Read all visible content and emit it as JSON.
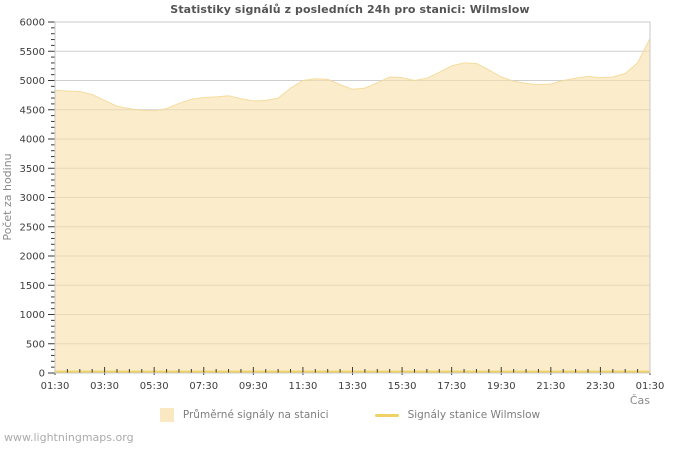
{
  "page": {
    "footer": "www.lightningmaps.org"
  },
  "colors": {
    "area_fill": "#F8E0A8",
    "area_fill_opacity": 0.6,
    "area_edge": "#F2D894",
    "station_line": "#F0D264",
    "legend_area_swatch": "#FAE8C3",
    "grid": "#CFCFCF",
    "plot_border": "#C9C9C9",
    "tick": "#3a3a3a",
    "title_text": "#545454"
  },
  "chart_data": {
    "type": "area",
    "title": "Statistiky signálů z posledních 24h pro stanici: Wilmslow",
    "xlabel": "Čas",
    "ylabel": "Počet za hodinu",
    "ylim": [
      0,
      6000
    ],
    "y_tick_step": 500,
    "y_minor_step": 100,
    "y_tick_labels": [
      "0",
      "500",
      "1000",
      "1500",
      "2000",
      "2500",
      "3000",
      "3500",
      "4000",
      "4500",
      "5000",
      "5500",
      "6000"
    ],
    "x_start": "01:30",
    "x_step_minutes": 30,
    "x_tick_labels": [
      "01:30",
      "03:30",
      "05:30",
      "07:30",
      "09:30",
      "11:30",
      "13:30",
      "15:30",
      "17:30",
      "19:30",
      "21:30",
      "23:30",
      "01:30"
    ],
    "x_minor_per_label": 4,
    "grid": "horizontal",
    "legend_position": "bottom",
    "series": [
      {
        "name": "Průměrné signály na stanici",
        "type": "area",
        "values": [
          4830,
          4820,
          4810,
          4760,
          4660,
          4560,
          4520,
          4490,
          4480,
          4520,
          4610,
          4680,
          4710,
          4720,
          4740,
          4690,
          4650,
          4660,
          4700,
          4870,
          5000,
          5030,
          5020,
          4930,
          4850,
          4870,
          4960,
          5060,
          5050,
          5000,
          5040,
          5140,
          5250,
          5300,
          5290,
          5180,
          5060,
          4990,
          4950,
          4930,
          4940,
          5000,
          5040,
          5070,
          5050,
          5060,
          5120,
          5300,
          5720
        ]
      },
      {
        "name": "Signály stanice Wilmslow",
        "type": "line",
        "values": [
          0,
          0,
          0,
          0,
          0,
          0,
          0,
          0,
          0,
          0,
          0,
          0,
          0,
          0,
          0,
          0,
          0,
          0,
          0,
          0,
          0,
          0,
          0,
          0,
          0,
          0,
          0,
          0,
          0,
          0,
          0,
          0,
          0,
          0,
          0,
          0,
          0,
          0,
          0,
          0,
          0,
          0,
          0,
          0,
          0,
          0,
          0,
          0,
          0
        ]
      }
    ]
  }
}
